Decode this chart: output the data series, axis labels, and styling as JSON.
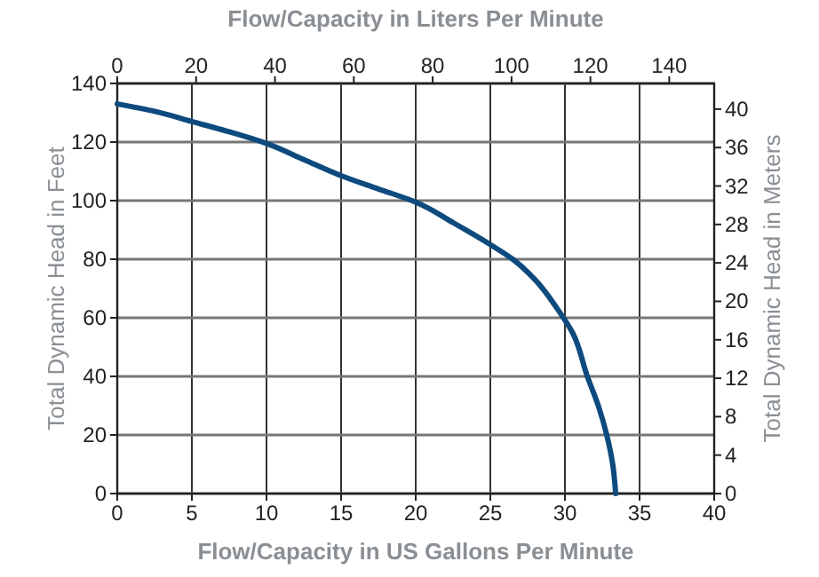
{
  "chart_data": {
    "type": "line",
    "xlabel": "Flow/Capacity in US Gallons Per Minute",
    "x2label": "Flow/Capacity in Liters Per Minute",
    "ylabel": "Total Dynamic Head in Feet",
    "y2label": "Total Dynamic Head in Meters",
    "xlim": [
      0,
      40
    ],
    "xticks": [
      0,
      5,
      10,
      15,
      20,
      25,
      30,
      35,
      40
    ],
    "x2lim": [
      0,
      151.4
    ],
    "x2ticks": [
      0,
      20,
      40,
      60,
      80,
      100,
      120,
      140
    ],
    "ylim": [
      0,
      140
    ],
    "yticks": [
      0,
      20,
      40,
      60,
      80,
      100,
      120,
      140
    ],
    "y2lim": [
      0,
      42.67
    ],
    "y2ticks": [
      0,
      4,
      8,
      12,
      16,
      20,
      24,
      28,
      32,
      36,
      40
    ],
    "grid": true,
    "marker": "none",
    "line_style": "solid",
    "series": [
      {
        "color": "#0d4a7e",
        "x": [
          0,
          2.5,
          5,
          7.5,
          10,
          12.5,
          15,
          17.5,
          20,
          22.5,
          25,
          26.5,
          28,
          29.5,
          30.5,
          31.5,
          32.3,
          32.8,
          33.2,
          33.4
        ],
        "values": [
          133,
          130.5,
          127,
          123.5,
          119.5,
          114,
          108.5,
          104,
          99.5,
          92.5,
          85,
          80,
          73,
          63,
          55,
          40,
          29,
          20,
          10,
          0
        ]
      }
    ]
  }
}
